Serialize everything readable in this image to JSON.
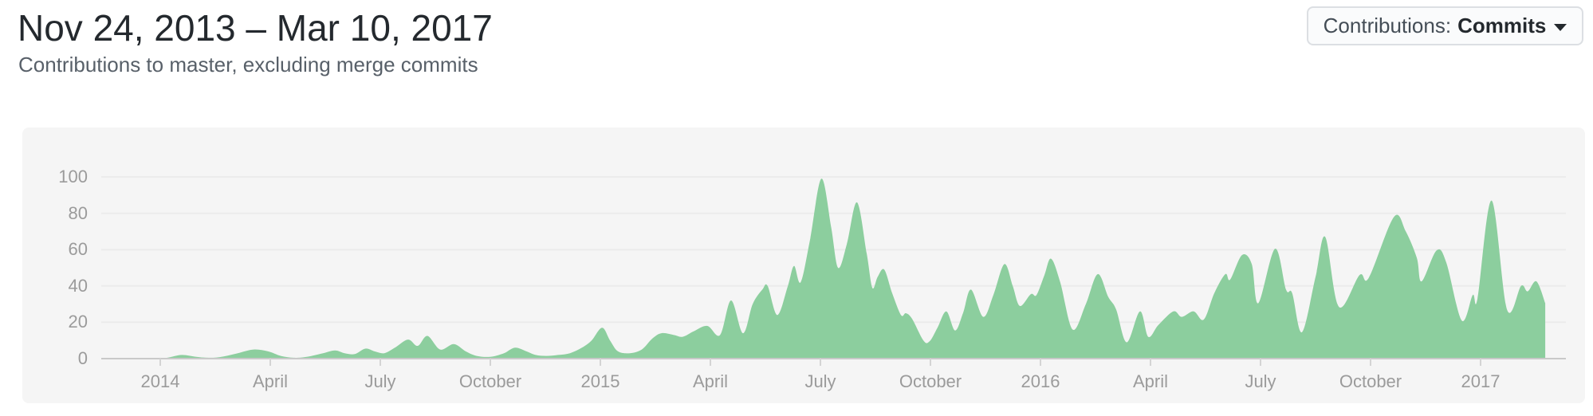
{
  "header": {
    "title": "Nov 24, 2013 – Mar 10, 2017",
    "subtitle": "Contributions to master, excluding merge commits"
  },
  "filter_button": {
    "label": "Contributions:",
    "value": "Commits",
    "caret_icon": "caret-down-icon"
  },
  "colors": {
    "area_green": "#8cce9e",
    "panel_bg": "#f5f5f5",
    "grid_line": "#ebebeb",
    "axis_line": "#c9c9c9",
    "tick_mark": "#d4d4d4",
    "axis_text": "#9b9b9b",
    "title_text": "#24292e",
    "subtitle_text": "#586069"
  },
  "chart_data": {
    "type": "area",
    "series_label": "Commits",
    "x_unit": "decimal_year",
    "x_range_label": "Nov 24, 2013 – Mar 10, 2017",
    "ylim": [
      0,
      100
    ],
    "grid": true,
    "y_ticks": [
      0,
      20,
      40,
      60,
      80,
      100
    ],
    "x_ticks": [
      {
        "label": "2014",
        "year": 2014
      },
      {
        "label": "April",
        "year": 2014.25
      },
      {
        "label": "July",
        "year": 2014.5
      },
      {
        "label": "October",
        "year": 2014.75
      },
      {
        "label": "2015",
        "year": 2015
      },
      {
        "label": "April",
        "year": 2015.25
      },
      {
        "label": "July",
        "year": 2015.5
      },
      {
        "label": "October",
        "year": 2015.75
      },
      {
        "label": "2016",
        "year": 2016
      },
      {
        "label": "April",
        "year": 2016.25
      },
      {
        "label": "July",
        "year": 2016.5
      },
      {
        "label": "October",
        "year": 2016.75
      },
      {
        "label": "2017",
        "year": 2017
      }
    ],
    "points": [
      [
        2013.899,
        0
      ],
      [
        2013.944,
        0
      ],
      [
        2013.989,
        0
      ],
      [
        2014.016,
        0.5
      ],
      [
        2014.049,
        2
      ],
      [
        2014.082,
        1
      ],
      [
        2014.11,
        0.5
      ],
      [
        2014.139,
        1
      ],
      [
        2014.176,
        3
      ],
      [
        2014.212,
        5
      ],
      [
        2014.245,
        4
      ],
      [
        2014.274,
        1.5
      ],
      [
        2014.303,
        0.5
      ],
      [
        2014.333,
        1
      ],
      [
        2014.37,
        3
      ],
      [
        2014.397,
        4.5
      ],
      [
        2014.419,
        3
      ],
      [
        2014.442,
        2.5
      ],
      [
        2014.466,
        5.5
      ],
      [
        2014.487,
        4
      ],
      [
        2014.509,
        3
      ],
      [
        2014.533,
        6
      ],
      [
        2014.563,
        10.5
      ],
      [
        2014.585,
        7
      ],
      [
        2014.607,
        12.5
      ],
      [
        2014.636,
        5
      ],
      [
        2014.667,
        8
      ],
      [
        2014.694,
        4
      ],
      [
        2014.719,
        1.5
      ],
      [
        2014.75,
        1
      ],
      [
        2014.781,
        3
      ],
      [
        2014.806,
        6
      ],
      [
        2014.832,
        4
      ],
      [
        2014.853,
        2
      ],
      [
        2014.877,
        1.5
      ],
      [
        2014.904,
        2
      ],
      [
        2014.931,
        3
      ],
      [
        2014.958,
        6
      ],
      [
        2014.98,
        10
      ],
      [
        2015.004,
        17
      ],
      [
        2015.022,
        10
      ],
      [
        2015.04,
        4
      ],
      [
        2015.067,
        3
      ],
      [
        2015.094,
        5
      ],
      [
        2015.118,
        11
      ],
      [
        2015.139,
        14
      ],
      [
        2015.167,
        13
      ],
      [
        2015.187,
        12
      ],
      [
        2015.212,
        15
      ],
      [
        2015.243,
        18
      ],
      [
        2015.272,
        13
      ],
      [
        2015.297,
        32
      ],
      [
        2015.324,
        14
      ],
      [
        2015.346,
        30
      ],
      [
        2015.368,
        38
      ],
      [
        2015.38,
        40
      ],
      [
        2015.402,
        24
      ],
      [
        2015.426,
        40
      ],
      [
        2015.44,
        51
      ],
      [
        2015.455,
        42
      ],
      [
        2015.476,
        65
      ],
      [
        2015.502,
        99
      ],
      [
        2015.524,
        73
      ],
      [
        2015.54,
        50
      ],
      [
        2015.56,
        63
      ],
      [
        2015.583,
        86
      ],
      [
        2015.605,
        58
      ],
      [
        2015.618,
        39
      ],
      [
        2015.63,
        45
      ],
      [
        2015.645,
        49
      ],
      [
        2015.663,
        36
      ],
      [
        2015.683,
        24
      ],
      [
        2015.694,
        25
      ],
      [
        2015.708,
        22
      ],
      [
        2015.734,
        10
      ],
      [
        2015.748,
        9.5
      ],
      [
        2015.766,
        17
      ],
      [
        2015.786,
        26
      ],
      [
        2015.806,
        15.5
      ],
      [
        2015.824,
        25
      ],
      [
        2015.842,
        38
      ],
      [
        2015.87,
        23
      ],
      [
        2015.893,
        35
      ],
      [
        2015.918,
        52
      ],
      [
        2015.937,
        40
      ],
      [
        2015.953,
        29
      ],
      [
        2015.978,
        35.5
      ],
      [
        2015.991,
        35
      ],
      [
        2016.009,
        46
      ],
      [
        2016.024,
        55
      ],
      [
        2016.045,
        42
      ],
      [
        2016.073,
        16
      ],
      [
        2016.103,
        30
      ],
      [
        2016.13,
        46.5
      ],
      [
        2016.154,
        34
      ],
      [
        2016.172,
        27
      ],
      [
        2016.196,
        9
      ],
      [
        2016.226,
        26
      ],
      [
        2016.245,
        12
      ],
      [
        2016.268,
        18.5
      ],
      [
        2016.302,
        26
      ],
      [
        2016.321,
        23
      ],
      [
        2016.348,
        26
      ],
      [
        2016.371,
        21.5
      ],
      [
        2016.395,
        36
      ],
      [
        2016.42,
        46.5
      ],
      [
        2016.431,
        43.5
      ],
      [
        2016.458,
        57
      ],
      [
        2016.48,
        52
      ],
      [
        2016.495,
        30.5
      ],
      [
        2016.533,
        60.5
      ],
      [
        2016.558,
        38
      ],
      [
        2016.572,
        36
      ],
      [
        2016.594,
        14.5
      ],
      [
        2016.625,
        45
      ],
      [
        2016.647,
        67
      ],
      [
        2016.678,
        28.5
      ],
      [
        2016.725,
        46
      ],
      [
        2016.746,
        44.5
      ],
      [
        2016.803,
        78
      ],
      [
        2016.83,
        70
      ],
      [
        2016.855,
        55.5
      ],
      [
        2016.866,
        42.5
      ],
      [
        2016.9,
        59.5
      ],
      [
        2016.922,
        53
      ],
      [
        2016.957,
        21
      ],
      [
        2016.982,
        35
      ],
      [
        2016.993,
        33
      ],
      [
        2017.025,
        87
      ],
      [
        2017.06,
        27
      ],
      [
        2017.092,
        40
      ],
      [
        2017.107,
        37
      ],
      [
        2017.127,
        42.5
      ],
      [
        2017.147,
        30.5
      ]
    ]
  }
}
